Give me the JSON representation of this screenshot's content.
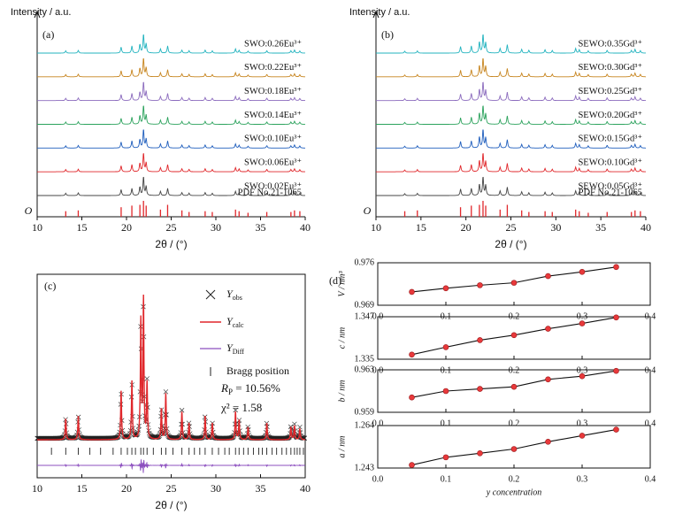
{
  "chart_data": [
    {
      "type": "xrd",
      "panel": "(a)",
      "ylabel": "Intensity / a.u.",
      "origin": "O",
      "xlabel": "2θ / (°)",
      "xlim": [
        10,
        40
      ],
      "xticks": [
        10,
        15,
        20,
        25,
        30,
        35,
        40
      ],
      "peaks": {
        "x": [
          13.2,
          14.6,
          19.4,
          20.6,
          21.5,
          21.9,
          22.2,
          23.8,
          24.6,
          26.2,
          27.0,
          28.8,
          29.6,
          32.2,
          32.6,
          33.6,
          35.7,
          38.4,
          38.8,
          39.4
        ],
        "intensity": [
          12,
          14,
          32,
          38,
          45,
          100,
          48,
          22,
          38,
          16,
          13,
          16,
          12,
          22,
          15,
          10,
          13,
          12,
          16,
          11
        ]
      },
      "series": [
        {
          "name": "SWO:0.26Eu³⁺",
          "color": "#22b3bf"
        },
        {
          "name": "SWO:0.22Eu³⁺",
          "color": "#c7851f"
        },
        {
          "name": "SWO:0.18Eu³⁺",
          "color": "#8c6cbe"
        },
        {
          "name": "SWO:0.14Eu³⁺",
          "color": "#2ba25c"
        },
        {
          "name": "SWO:0.10Eu³⁺",
          "color": "#1f5ebd"
        },
        {
          "name": "SWO:0.06Eu³⁺",
          "color": "#e0272b"
        },
        {
          "name": "SWO:0.02Eu³⁺",
          "color": "#444444"
        }
      ],
      "reference": {
        "name": "PDF No.21-1065",
        "color": "#e0272b",
        "x": [
          13.2,
          14.6,
          19.4,
          20.6,
          21.5,
          21.9,
          22.2,
          23.8,
          24.6,
          26.2,
          27.0,
          28.8,
          29.6,
          32.2,
          32.6,
          33.6,
          35.7,
          38.4,
          38.8,
          39.4
        ],
        "values": [
          35,
          40,
          60,
          70,
          75,
          100,
          70,
          45,
          75,
          40,
          30,
          35,
          30,
          45,
          35,
          25,
          30,
          30,
          40,
          35
        ]
      }
    },
    {
      "type": "xrd",
      "panel": "(b)",
      "ylabel": "Intensity / a.u.",
      "origin": "O",
      "xlabel": "2θ / (°)",
      "xlim": [
        10,
        40
      ],
      "xticks": [
        10,
        15,
        20,
        25,
        30,
        35,
        40
      ],
      "peaks": {
        "x": [
          13.2,
          14.6,
          19.4,
          20.6,
          21.5,
          21.9,
          22.2,
          23.8,
          24.6,
          26.2,
          27.0,
          28.8,
          29.6,
          32.2,
          32.6,
          33.6,
          35.7,
          38.4,
          38.8,
          39.4
        ],
        "intensity": [
          10,
          12,
          35,
          38,
          60,
          100,
          55,
          25,
          45,
          20,
          15,
          18,
          14,
          25,
          18,
          12,
          15,
          14,
          20,
          13
        ]
      },
      "series": [
        {
          "name": "SEWO:0.35Gd³⁺",
          "color": "#22b3bf"
        },
        {
          "name": "SEWO:0.30Gd³⁺",
          "color": "#c7851f"
        },
        {
          "name": "SEWO:0.25Gd³⁺",
          "color": "#8c6cbe"
        },
        {
          "name": "SEWO:0.20Gd³⁺",
          "color": "#2ba25c"
        },
        {
          "name": "SEWO:0.15Gd³⁺",
          "color": "#1f5ebd"
        },
        {
          "name": "SEWO:0.10Gd³⁺",
          "color": "#e0272b"
        },
        {
          "name": "SEWO:0.05Gd³⁺",
          "color": "#444444"
        }
      ],
      "reference": {
        "name": "PDF No.21-1065",
        "color": "#e0272b",
        "x": [
          13.2,
          14.6,
          19.4,
          20.6,
          21.5,
          21.9,
          22.2,
          23.8,
          24.6,
          26.2,
          27.0,
          28.8,
          29.6,
          32.2,
          32.6,
          33.6,
          35.7,
          38.4,
          38.8,
          39.4
        ],
        "values": [
          35,
          40,
          60,
          70,
          75,
          100,
          70,
          45,
          75,
          40,
          30,
          35,
          30,
          45,
          35,
          25,
          30,
          30,
          40,
          35
        ]
      }
    },
    {
      "type": "rietveld",
      "panel": "(c)",
      "xlabel": "2θ / (°)",
      "xlim": [
        10,
        40
      ],
      "xticks": [
        10,
        15,
        20,
        25,
        30,
        35,
        40
      ],
      "peaks": {
        "x": [
          13.2,
          14.6,
          19.4,
          20.6,
          21.6,
          21.9,
          22.3,
          23.9,
          24.4,
          26.2,
          27.0,
          28.8,
          29.6,
          32.2,
          32.6,
          33.6,
          35.7,
          38.4,
          38.8,
          39.4
        ],
        "intensity": [
          15,
          17,
          35,
          42,
          85,
          100,
          40,
          22,
          33,
          20,
          12,
          17,
          12,
          20,
          14,
          9,
          12,
          9,
          10,
          8
        ]
      },
      "bragg_positions": [
        11.6,
        13.2,
        14.6,
        15.9,
        17.1,
        18.5,
        19.4,
        20.1,
        20.6,
        21.0,
        21.6,
        21.9,
        22.3,
        23.0,
        23.9,
        24.4,
        25.2,
        26.2,
        27.0,
        27.6,
        28.2,
        28.8,
        29.6,
        30.3,
        31.0,
        31.5,
        32.2,
        32.6,
        33.1,
        33.6,
        34.2,
        34.8,
        35.2,
        35.7,
        36.3,
        36.8,
        37.4,
        37.9,
        38.4,
        38.8,
        39.1,
        39.4,
        39.8
      ],
      "legend": [
        {
          "name": "Y",
          "sub": "obs"
        },
        {
          "name": "Y",
          "sub": "calc"
        },
        {
          "name": "Y",
          "sub": "Diff"
        },
        {
          "name": "Bragg position"
        }
      ],
      "colors": {
        "obs": "#222222",
        "calc": "#e0272b",
        "diff": "#8c4fbf",
        "bragg": "#222222"
      },
      "annotations": [
        {
          "name": "R",
          "sub": "P",
          "text": " = 10.56%"
        },
        {
          "text": "χ² = 1.58"
        }
      ]
    },
    {
      "type": "line",
      "panel": "(d)",
      "ylabel": "V / nm³",
      "xlim": [
        0,
        0.4
      ],
      "xticks": [
        {
          "value": 0,
          "label": "0.0"
        },
        0.1,
        0.2,
        0.3,
        0.4
      ],
      "ylim": [
        0.969,
        0.976
      ],
      "yticks": [
        0.969,
        0.976
      ],
      "x": [
        0.05,
        0.1,
        0.15,
        0.2,
        0.25,
        0.3,
        0.35
      ],
      "values": [
        0.9712,
        0.9718,
        0.9723,
        0.9727,
        0.9738,
        0.9745,
        0.9753
      ]
    },
    {
      "type": "line",
      "ylabel": "c / nm",
      "xlim": [
        0,
        0.4
      ],
      "xticks": [
        {
          "value": 0,
          "label": "0.0"
        },
        0.1,
        0.2,
        0.3,
        0.4
      ],
      "ylim": [
        1.335,
        1.347
      ],
      "yticks": [
        1.335,
        1.347
      ],
      "x": [
        0.05,
        0.1,
        0.15,
        0.2,
        0.25,
        0.3,
        0.35
      ],
      "values": [
        1.3363,
        1.3384,
        1.3404,
        1.3418,
        1.3436,
        1.3451,
        1.3468
      ]
    },
    {
      "type": "line",
      "ylabel": "b / nm",
      "xlim": [
        0,
        0.4
      ],
      "xticks": [
        {
          "value": 0,
          "label": "0.0"
        },
        0.1,
        0.2,
        0.3,
        0.4
      ],
      "ylim": [
        0.959,
        0.963
      ],
      "yticks": [
        0.959,
        0.963
      ],
      "x": [
        0.05,
        0.1,
        0.15,
        0.2,
        0.25,
        0.3,
        0.35
      ],
      "values": [
        0.9604,
        0.961,
        0.9612,
        0.9614,
        0.9621,
        0.9624,
        0.9629
      ]
    },
    {
      "type": "line",
      "ylabel": "a / nm",
      "xlabel": "y concentration",
      "xlim": [
        0,
        0.4
      ],
      "xticks": [
        {
          "value": 0,
          "label": "0.0"
        },
        0.1,
        0.2,
        0.3,
        0.4
      ],
      "ylim": [
        1.243,
        1.264
      ],
      "yticks": [
        1.243,
        1.264
      ],
      "x": [
        0.05,
        0.1,
        0.15,
        0.2,
        0.25,
        0.3,
        0.35
      ],
      "values": [
        1.2445,
        1.2483,
        1.2503,
        1.2524,
        1.256,
        1.259,
        1.262
      ]
    }
  ]
}
